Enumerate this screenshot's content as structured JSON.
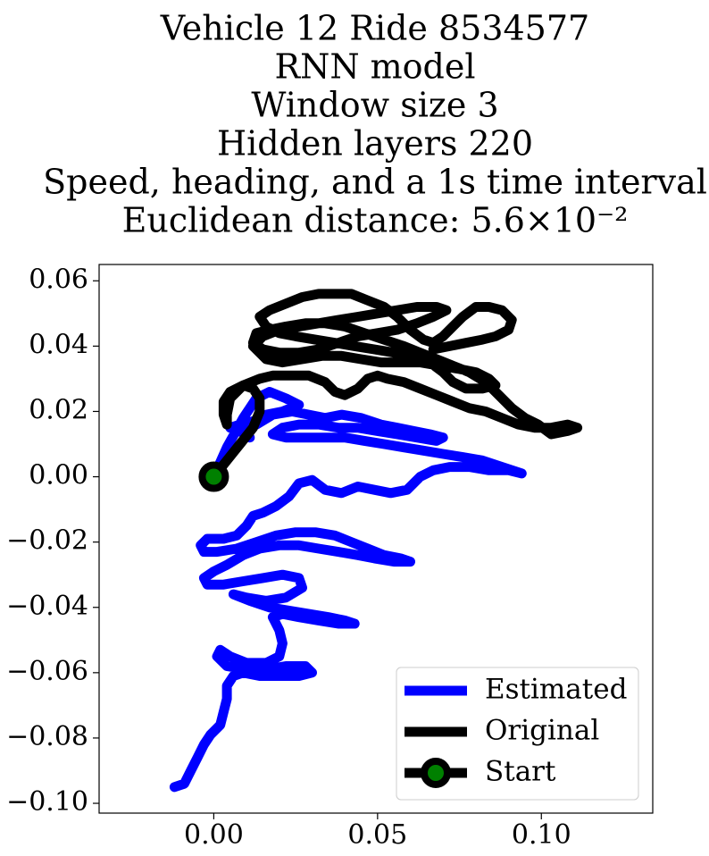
{
  "chart_data": {
    "type": "line",
    "title_lines": [
      "Vehicle 12 Ride 8534577",
      "RNN model",
      "Window size 3",
      "Hidden layers 220",
      "Speed, heading, and a 1s time interval",
      "Euclidean distance: 5.6×10⁻²"
    ],
    "xlabel": "",
    "ylabel": "",
    "xlim": [
      -0.035,
      0.134
    ],
    "ylim": [
      -0.103,
      0.065
    ],
    "x_ticks": [
      0.0,
      0.05,
      0.1
    ],
    "x_tick_labels": [
      "0.00",
      "0.05",
      "0.10"
    ],
    "y_ticks": [
      0.06,
      0.04,
      0.02,
      0.0,
      -0.02,
      -0.04,
      -0.06,
      -0.08,
      -0.1
    ],
    "y_tick_labels": [
      "0.06",
      "0.04",
      "0.02",
      "0.00",
      "−0.02",
      "−0.04",
      "−0.06",
      "−0.08",
      "−0.10"
    ],
    "grid": false,
    "legend_position": "bottom-right",
    "series": [
      {
        "name": "Estimated",
        "color": "#0000ff",
        "points": [
          [
            0.0,
            0.0
          ],
          [
            0.004,
            0.009
          ],
          [
            0.009,
            0.018
          ],
          [
            0.013,
            0.024
          ],
          [
            0.017,
            0.026
          ],
          [
            0.022,
            0.024
          ],
          [
            0.026,
            0.022
          ],
          [
            0.021,
            0.02
          ],
          [
            0.016,
            0.019
          ],
          [
            0.012,
            0.017
          ],
          [
            0.008,
            0.016
          ],
          [
            0.005,
            0.015
          ],
          [
            0.009,
            0.014
          ],
          [
            0.011,
            0.012
          ],
          [
            0.008,
            0.014
          ],
          [
            0.013,
            0.016
          ],
          [
            0.018,
            0.019
          ],
          [
            0.024,
            0.02
          ],
          [
            0.029,
            0.019
          ],
          [
            0.034,
            0.018
          ],
          [
            0.039,
            0.019
          ],
          [
            0.045,
            0.018
          ],
          [
            0.051,
            0.016
          ],
          [
            0.056,
            0.015
          ],
          [
            0.061,
            0.014
          ],
          [
            0.066,
            0.013
          ],
          [
            0.07,
            0.012
          ],
          [
            0.068,
            0.011
          ],
          [
            0.062,
            0.012
          ],
          [
            0.056,
            0.013
          ],
          [
            0.05,
            0.014
          ],
          [
            0.044,
            0.015
          ],
          [
            0.038,
            0.015
          ],
          [
            0.032,
            0.016
          ],
          [
            0.026,
            0.016
          ],
          [
            0.021,
            0.015
          ],
          [
            0.018,
            0.013
          ],
          [
            0.022,
            0.012
          ],
          [
            0.028,
            0.012
          ],
          [
            0.034,
            0.012
          ],
          [
            0.04,
            0.012
          ],
          [
            0.046,
            0.011
          ],
          [
            0.052,
            0.01
          ],
          [
            0.058,
            0.009
          ],
          [
            0.064,
            0.008
          ],
          [
            0.07,
            0.007
          ],
          [
            0.076,
            0.006
          ],
          [
            0.082,
            0.005
          ],
          [
            0.088,
            0.003
          ],
          [
            0.094,
            0.001
          ],
          [
            0.09,
            0.002
          ],
          [
            0.084,
            0.002
          ],
          [
            0.078,
            0.003
          ],
          [
            0.072,
            0.003
          ],
          [
            0.067,
            0.002
          ],
          [
            0.063,
            0.0
          ],
          [
            0.059,
            -0.004
          ],
          [
            0.054,
            -0.005
          ],
          [
            0.049,
            -0.004
          ],
          [
            0.044,
            -0.003
          ],
          [
            0.039,
            -0.005
          ],
          [
            0.034,
            -0.004
          ],
          [
            0.03,
            -0.001
          ],
          [
            0.026,
            -0.002
          ],
          [
            0.023,
            -0.006
          ],
          [
            0.019,
            -0.009
          ],
          [
            0.015,
            -0.011
          ],
          [
            0.012,
            -0.012
          ],
          [
            0.01,
            -0.015
          ],
          [
            0.007,
            -0.018
          ],
          [
            0.003,
            -0.019
          ],
          [
            -0.002,
            -0.019
          ],
          [
            -0.004,
            -0.021
          ],
          [
            -0.003,
            -0.023
          ],
          [
            0.001,
            -0.023
          ],
          [
            0.007,
            -0.022
          ],
          [
            0.013,
            -0.02
          ],
          [
            0.019,
            -0.018
          ],
          [
            0.025,
            -0.017
          ],
          [
            0.031,
            -0.017
          ],
          [
            0.037,
            -0.018
          ],
          [
            0.042,
            -0.02
          ],
          [
            0.047,
            -0.022
          ],
          [
            0.052,
            -0.024
          ],
          [
            0.057,
            -0.025
          ],
          [
            0.06,
            -0.026
          ],
          [
            0.055,
            -0.026
          ],
          [
            0.049,
            -0.025
          ],
          [
            0.044,
            -0.024
          ],
          [
            0.038,
            -0.023
          ],
          [
            0.032,
            -0.022
          ],
          [
            0.026,
            -0.021
          ],
          [
            0.02,
            -0.021
          ],
          [
            0.014,
            -0.022
          ],
          [
            0.009,
            -0.024
          ],
          [
            0.004,
            -0.027
          ],
          [
            0.0,
            -0.029
          ],
          [
            -0.003,
            -0.031
          ],
          [
            -0.002,
            -0.033
          ],
          [
            0.003,
            -0.033
          ],
          [
            0.009,
            -0.032
          ],
          [
            0.015,
            -0.031
          ],
          [
            0.021,
            -0.03
          ],
          [
            0.026,
            -0.031
          ],
          [
            0.027,
            -0.034
          ],
          [
            0.022,
            -0.037
          ],
          [
            0.016,
            -0.038
          ],
          [
            0.01,
            -0.037
          ],
          [
            0.006,
            -0.036
          ],
          [
            0.011,
            -0.038
          ],
          [
            0.017,
            -0.04
          ],
          [
            0.023,
            -0.041
          ],
          [
            0.029,
            -0.042
          ],
          [
            0.035,
            -0.043
          ],
          [
            0.04,
            -0.044
          ],
          [
            0.043,
            -0.045
          ],
          [
            0.038,
            -0.045
          ],
          [
            0.032,
            -0.044
          ],
          [
            0.026,
            -0.043
          ],
          [
            0.021,
            -0.042
          ],
          [
            0.018,
            -0.043
          ],
          [
            0.02,
            -0.047
          ],
          [
            0.021,
            -0.051
          ],
          [
            0.02,
            -0.055
          ],
          [
            0.016,
            -0.057
          ],
          [
            0.01,
            -0.057
          ],
          [
            0.005,
            -0.055
          ],
          [
            0.002,
            -0.053
          ],
          [
            0.001,
            -0.055
          ],
          [
            0.004,
            -0.058
          ],
          [
            0.01,
            -0.059
          ],
          [
            0.016,
            -0.059
          ],
          [
            0.022,
            -0.058
          ],
          [
            0.028,
            -0.058
          ],
          [
            0.03,
            -0.06
          ],
          [
            0.026,
            -0.061
          ],
          [
            0.02,
            -0.061
          ],
          [
            0.014,
            -0.061
          ],
          [
            0.009,
            -0.06
          ],
          [
            0.006,
            -0.061
          ],
          [
            0.004,
            -0.064
          ],
          [
            0.004,
            -0.068
          ],
          [
            0.003,
            -0.072
          ],
          [
            0.002,
            -0.076
          ],
          [
            -0.001,
            -0.079
          ],
          [
            -0.003,
            -0.082
          ],
          [
            -0.005,
            -0.086
          ],
          [
            -0.007,
            -0.09
          ],
          [
            -0.009,
            -0.094
          ],
          [
            -0.012,
            -0.095
          ]
        ]
      },
      {
        "name": "Original",
        "color": "#000000",
        "points": [
          [
            0.0,
            0.0
          ],
          [
            0.004,
            0.005
          ],
          [
            0.008,
            0.01
          ],
          [
            0.012,
            0.015
          ],
          [
            0.014,
            0.02
          ],
          [
            0.014,
            0.024
          ],
          [
            0.012,
            0.027
          ],
          [
            0.009,
            0.028
          ],
          [
            0.005,
            0.026
          ],
          [
            0.003,
            0.023
          ],
          [
            0.003,
            0.019
          ],
          [
            0.004,
            0.016
          ],
          [
            0.004,
            0.019
          ],
          [
            0.005,
            0.024
          ],
          [
            0.009,
            0.028
          ],
          [
            0.014,
            0.03
          ],
          [
            0.018,
            0.031
          ],
          [
            0.023,
            0.031
          ],
          [
            0.029,
            0.031
          ],
          [
            0.034,
            0.029
          ],
          [
            0.037,
            0.026
          ],
          [
            0.04,
            0.025
          ],
          [
            0.044,
            0.027
          ],
          [
            0.047,
            0.03
          ],
          [
            0.05,
            0.031
          ],
          [
            0.053,
            0.03
          ],
          [
            0.058,
            0.029
          ],
          [
            0.063,
            0.027
          ],
          [
            0.068,
            0.025
          ],
          [
            0.073,
            0.023
          ],
          [
            0.078,
            0.021
          ],
          [
            0.083,
            0.02
          ],
          [
            0.088,
            0.018
          ],
          [
            0.093,
            0.016
          ],
          [
            0.098,
            0.015
          ],
          [
            0.103,
            0.015
          ],
          [
            0.108,
            0.016
          ],
          [
            0.111,
            0.015
          ],
          [
            0.108,
            0.014
          ],
          [
            0.103,
            0.013
          ],
          [
            0.099,
            0.016
          ],
          [
            0.095,
            0.018
          ],
          [
            0.091,
            0.021
          ],
          [
            0.087,
            0.025
          ],
          [
            0.083,
            0.029
          ],
          [
            0.078,
            0.032
          ],
          [
            0.073,
            0.034
          ],
          [
            0.068,
            0.036
          ],
          [
            0.063,
            0.038
          ],
          [
            0.058,
            0.04
          ],
          [
            0.052,
            0.042
          ],
          [
            0.046,
            0.044
          ],
          [
            0.04,
            0.046
          ],
          [
            0.034,
            0.047
          ],
          [
            0.028,
            0.047
          ],
          [
            0.022,
            0.046
          ],
          [
            0.017,
            0.045
          ],
          [
            0.013,
            0.044
          ],
          [
            0.012,
            0.041
          ],
          [
            0.015,
            0.039
          ],
          [
            0.02,
            0.038
          ],
          [
            0.026,
            0.038
          ],
          [
            0.032,
            0.039
          ],
          [
            0.038,
            0.041
          ],
          [
            0.044,
            0.043
          ],
          [
            0.05,
            0.044
          ],
          [
            0.056,
            0.045
          ],
          [
            0.062,
            0.047
          ],
          [
            0.067,
            0.049
          ],
          [
            0.071,
            0.051
          ],
          [
            0.068,
            0.052
          ],
          [
            0.062,
            0.052
          ],
          [
            0.056,
            0.051
          ],
          [
            0.05,
            0.05
          ],
          [
            0.044,
            0.049
          ],
          [
            0.038,
            0.048
          ],
          [
            0.032,
            0.047
          ],
          [
            0.026,
            0.046
          ],
          [
            0.02,
            0.045
          ],
          [
            0.015,
            0.043
          ],
          [
            0.012,
            0.04
          ],
          [
            0.016,
            0.036
          ],
          [
            0.021,
            0.035
          ],
          [
            0.027,
            0.036
          ],
          [
            0.033,
            0.037
          ],
          [
            0.039,
            0.037
          ],
          [
            0.045,
            0.036
          ],
          [
            0.051,
            0.035
          ],
          [
            0.057,
            0.035
          ],
          [
            0.063,
            0.035
          ],
          [
            0.069,
            0.034
          ],
          [
            0.075,
            0.033
          ],
          [
            0.08,
            0.032
          ],
          [
            0.084,
            0.03
          ],
          [
            0.086,
            0.028
          ],
          [
            0.082,
            0.027
          ],
          [
            0.077,
            0.027
          ],
          [
            0.073,
            0.029
          ],
          [
            0.07,
            0.032
          ],
          [
            0.066,
            0.035
          ],
          [
            0.061,
            0.037
          ],
          [
            0.055,
            0.038
          ],
          [
            0.049,
            0.039
          ],
          [
            0.043,
            0.04
          ],
          [
            0.037,
            0.041
          ],
          [
            0.031,
            0.042
          ],
          [
            0.025,
            0.043
          ],
          [
            0.02,
            0.044
          ],
          [
            0.016,
            0.046
          ],
          [
            0.014,
            0.049
          ],
          [
            0.017,
            0.051
          ],
          [
            0.022,
            0.053
          ],
          [
            0.027,
            0.055
          ],
          [
            0.032,
            0.056
          ],
          [
            0.037,
            0.056
          ],
          [
            0.042,
            0.056
          ],
          [
            0.047,
            0.054
          ],
          [
            0.052,
            0.052
          ],
          [
            0.056,
            0.049
          ],
          [
            0.06,
            0.045
          ],
          [
            0.064,
            0.042
          ],
          [
            0.067,
            0.041
          ],
          [
            0.07,
            0.043
          ],
          [
            0.073,
            0.046
          ],
          [
            0.076,
            0.049
          ],
          [
            0.08,
            0.052
          ],
          [
            0.084,
            0.052
          ],
          [
            0.088,
            0.051
          ],
          [
            0.091,
            0.048
          ],
          [
            0.09,
            0.045
          ],
          [
            0.086,
            0.043
          ],
          [
            0.082,
            0.042
          ],
          [
            0.077,
            0.041
          ],
          [
            0.072,
            0.04
          ],
          [
            0.067,
            0.039
          ]
        ]
      }
    ],
    "start_point": {
      "name": "Start",
      "x": 0.0,
      "y": 0.0,
      "marker_color": "#008000",
      "edge_color": "#000000"
    }
  }
}
